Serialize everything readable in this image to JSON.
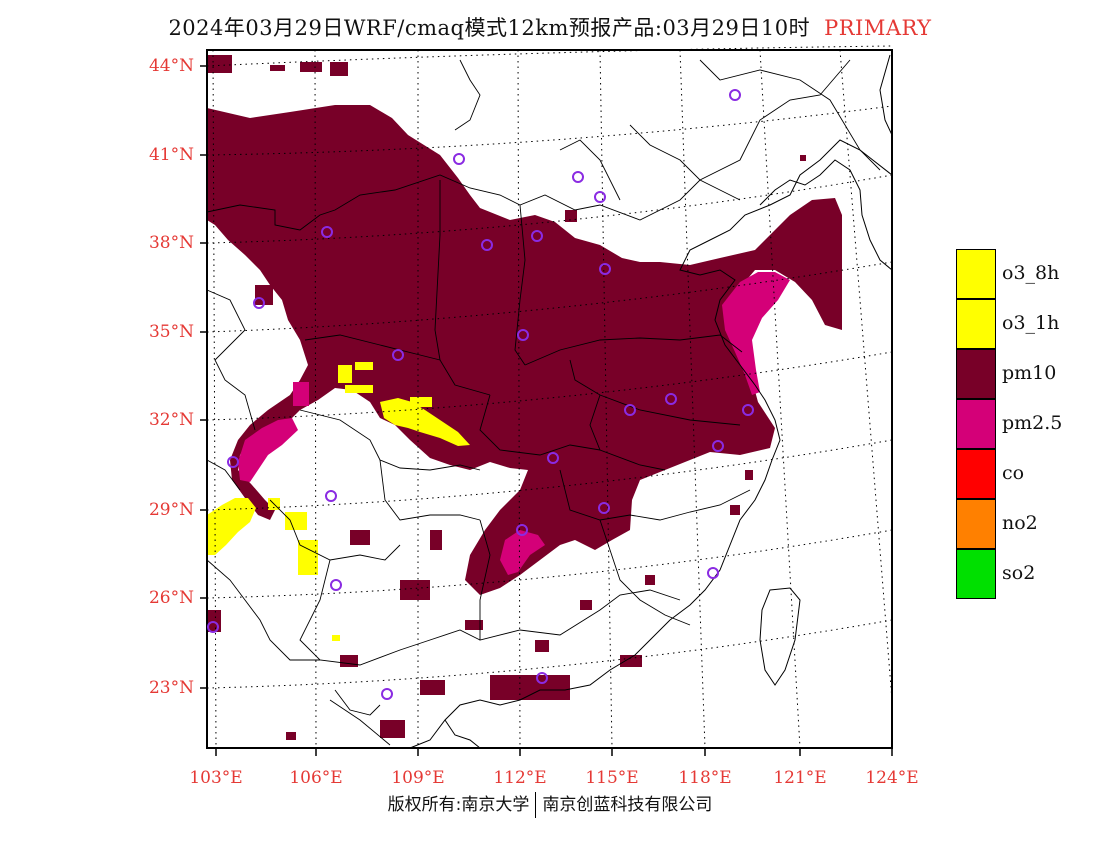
{
  "title": {
    "main": "2024年03月29日WRF/cmaq模式12km预报产品:03月29日10时",
    "tag": "PRIMARY"
  },
  "map": {
    "lat_labels": [
      "44°N",
      "41°N",
      "38°N",
      "35°N",
      "32°N",
      "29°N",
      "26°N",
      "23°N"
    ],
    "lon_labels": [
      "103°E",
      "106°E",
      "109°E",
      "112°E",
      "115°E",
      "118°E",
      "121°E",
      "124°E"
    ],
    "colors": {
      "pm10": "#780028",
      "pm25": "#d40078",
      "o3": "#ffff00",
      "station": "#8a2be2",
      "border": "#000000"
    }
  },
  "legend": [
    {
      "label": "o3_8h",
      "color": "#ffff00"
    },
    {
      "label": "o3_1h",
      "color": "#ffff00"
    },
    {
      "label": "pm10",
      "color": "#780028"
    },
    {
      "label": "pm2.5",
      "color": "#d40078"
    },
    {
      "label": "co",
      "color": "#ff0000"
    },
    {
      "label": "no2",
      "color": "#ff8000"
    },
    {
      "label": "so2",
      "color": "#00e000"
    }
  ],
  "footer": {
    "left": "版权所有:南京大学",
    "right": "南京创蓝科技有限公司"
  }
}
